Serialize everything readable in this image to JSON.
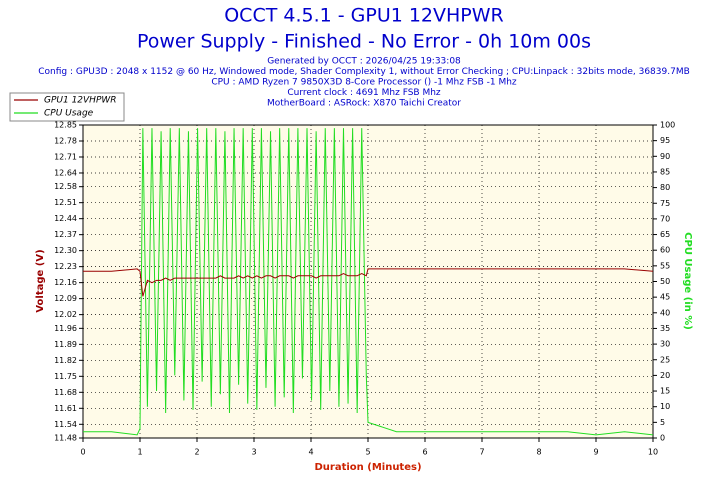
{
  "chart_data": {
    "type": "line",
    "title": "OCCT 4.5.1 - GPU1 12VHPWR",
    "subtitle": "Power Supply - Finished - No Error - 0h 10m 00s",
    "info": [
      "Generated by OCCT : 2026/04/25 19:33:08",
      "Config : GPU3D : 2048 x 1152 @ 60 Hz, Windowed mode, Shader Complexity 1, without Error Checking ; CPU:Linpack : 32bits mode, 36839.7MB",
      "CPU : AMD Ryzen 7 9850X3D 8-Core Processor () -1 Mhz FSB -1 Mhz",
      "Current clock : 4691 Mhz FSB  Mhz",
      "MotherBoard : ASRock: X870 Taichi Creator"
    ],
    "xlabel": "Duration (Minutes)",
    "ylabel": "Voltage (V)",
    "y2label": "CPU Usage (in %)",
    "x": [
      0,
      0.5,
      0.95,
      1.0,
      1.05,
      1.13,
      1.21,
      1.29,
      1.37,
      1.45,
      1.53,
      1.61,
      1.69,
      1.77,
      1.85,
      1.93,
      2.01,
      2.09,
      2.17,
      2.25,
      2.33,
      2.41,
      2.49,
      2.57,
      2.65,
      2.73,
      2.81,
      2.89,
      2.97,
      3.05,
      3.13,
      3.21,
      3.29,
      3.37,
      3.45,
      3.53,
      3.61,
      3.69,
      3.77,
      3.85,
      3.93,
      4.01,
      4.09,
      4.17,
      4.25,
      4.33,
      4.41,
      4.49,
      4.57,
      4.65,
      4.73,
      4.81,
      4.89,
      4.97,
      5.0,
      5.5,
      6,
      6.5,
      7,
      7.5,
      8,
      8.5,
      9,
      9.5,
      10
    ],
    "series": [
      {
        "name": "GPU1 12VHPWR",
        "color": "#990000",
        "axis": "y",
        "values": [
          12.21,
          12.21,
          12.22,
          12.21,
          12.1,
          12.17,
          12.16,
          12.17,
          12.17,
          12.18,
          12.17,
          12.18,
          12.18,
          12.18,
          12.18,
          12.18,
          12.18,
          12.18,
          12.18,
          12.18,
          12.18,
          12.19,
          12.18,
          12.18,
          12.18,
          12.19,
          12.18,
          12.19,
          12.18,
          12.19,
          12.18,
          12.19,
          12.19,
          12.18,
          12.19,
          12.19,
          12.19,
          12.18,
          12.19,
          12.19,
          12.19,
          12.19,
          12.18,
          12.19,
          12.19,
          12.19,
          12.19,
          12.19,
          12.2,
          12.19,
          12.19,
          12.19,
          12.2,
          12.19,
          12.22,
          12.22,
          12.22,
          12.22,
          12.22,
          12.22,
          12.22,
          12.22,
          12.22,
          12.22,
          12.21
        ]
      },
      {
        "name": "CPU Usage",
        "color": "#22dd22",
        "axis": "y2",
        "values": [
          2,
          2,
          1,
          3,
          99,
          10,
          99,
          15,
          98,
          8,
          99,
          20,
          99,
          12,
          98,
          9,
          99,
          18,
          99,
          10,
          99,
          14,
          98,
          8,
          99,
          17,
          99,
          11,
          99,
          9,
          99,
          16,
          98,
          10,
          99,
          13,
          99,
          8,
          99,
          19,
          99,
          12,
          98,
          9,
          99,
          15,
          99,
          10,
          99,
          11,
          99,
          8,
          99,
          20,
          5,
          2,
          2,
          2,
          2,
          2,
          2,
          2,
          1,
          2,
          1
        ]
      }
    ],
    "xlim": [
      0,
      10
    ],
    "xticks": [
      0,
      1,
      2,
      3,
      4,
      5,
      6,
      7,
      8,
      9,
      10
    ],
    "ylim": [
      11.48,
      12.85
    ],
    "yticks": [
      11.48,
      11.54,
      11.61,
      11.68,
      11.75,
      11.82,
      11.89,
      11.96,
      12.02,
      12.09,
      12.16,
      12.23,
      {
        "value": 12.3,
        "label": "12.30"
      },
      12.37,
      12.44,
      12.51,
      12.58,
      12.64,
      12.71,
      12.78,
      12.85
    ],
    "y2lim": [
      0,
      100
    ],
    "y2ticks": [
      0,
      5,
      10,
      15,
      20,
      25,
      30,
      35,
      40,
      45,
      50,
      55,
      60,
      65,
      70,
      75,
      80,
      85,
      90,
      95,
      100
    ],
    "grid": true,
    "legend": "top-left"
  }
}
